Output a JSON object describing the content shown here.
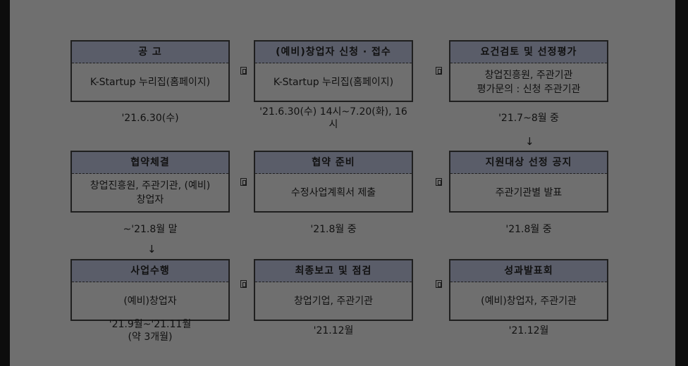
{
  "steps": [
    {
      "title": "공 고",
      "body": [
        "K-Startup 누리집(홈페이지)"
      ],
      "note": [
        "'21.6.30(수)"
      ]
    },
    {
      "title": "(예비)창업자 신청 · 접수",
      "body": [
        "K-Startup 누리집(홈페이지)"
      ],
      "note": [
        "'21.6.30(수) 14시~7.20(화), 16",
        "시"
      ]
    },
    {
      "title": "요건검토 및 선정평가",
      "body": [
        "창업진흥원, 주관기관",
        "평가문의 : 신청 주관기관"
      ],
      "note": [
        "'21.7~8월 중"
      ]
    },
    {
      "title": "협약체결",
      "body": [
        "창업진흥원, 주관기관, (예비)",
        "창업자"
      ],
      "note": [
        "~'21.8월 말"
      ]
    },
    {
      "title": "협약 준비",
      "body": [
        "수정사업계획서 제출"
      ],
      "note": [
        "'21.8월 중"
      ]
    },
    {
      "title": "지원대상 선정 공지",
      "body": [
        "주관기관별 발표"
      ],
      "note": [
        "'21.8월 중"
      ]
    },
    {
      "title": "사업수행",
      "body": [
        "(예비)창업자"
      ],
      "note": [
        "'21.9월~'21.11월",
        "(약 3개월)"
      ]
    },
    {
      "title": "최종보고 및 점검",
      "body": [
        "창업기업, 주관기관"
      ],
      "note": [
        "'21.12월"
      ]
    },
    {
      "title": "성과발표회",
      "body": [
        "(예비)창업자, 주관기관"
      ],
      "note": [
        "'21.12월"
      ]
    }
  ],
  "down_arrow": "↓"
}
